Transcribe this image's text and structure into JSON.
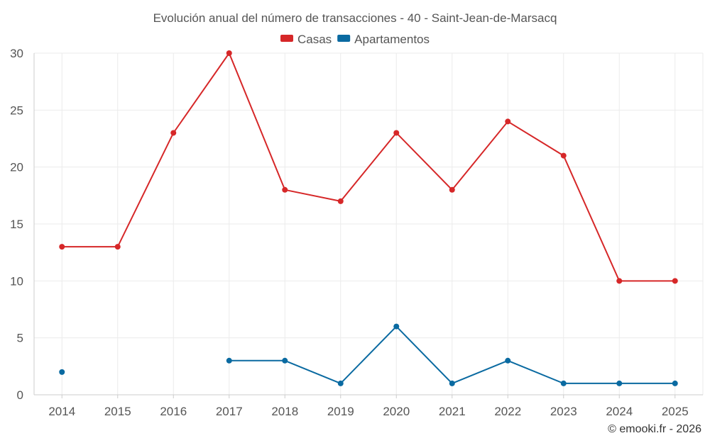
{
  "chart_data": {
    "type": "line",
    "title": "Evolución anual del número de transacciones - 40 - Saint-Jean-de-Marsacq",
    "categories": [
      "2014",
      "2015",
      "2016",
      "2017",
      "2018",
      "2019",
      "2020",
      "2021",
      "2022",
      "2023",
      "2024",
      "2025"
    ],
    "series": [
      {
        "name": "Casas",
        "color": "#d62728",
        "values": [
          13,
          13,
          23,
          30,
          18,
          17,
          23,
          18,
          24,
          21,
          10,
          10
        ]
      },
      {
        "name": "Apartamentos",
        "color": "#0a6aa1",
        "values": [
          2,
          null,
          null,
          3,
          3,
          1,
          6,
          1,
          3,
          1,
          1,
          1
        ]
      }
    ],
    "ylim": [
      0,
      30
    ],
    "yticks": [
      0,
      5,
      10,
      15,
      20,
      25,
      30
    ],
    "ytick_labels": [
      "0",
      "5",
      "10",
      "15",
      "20",
      "25",
      "30"
    ],
    "xlabel": "",
    "ylabel": "",
    "legend": "top-center",
    "grid": true
  },
  "credit": "© emooki.fr - 2026"
}
